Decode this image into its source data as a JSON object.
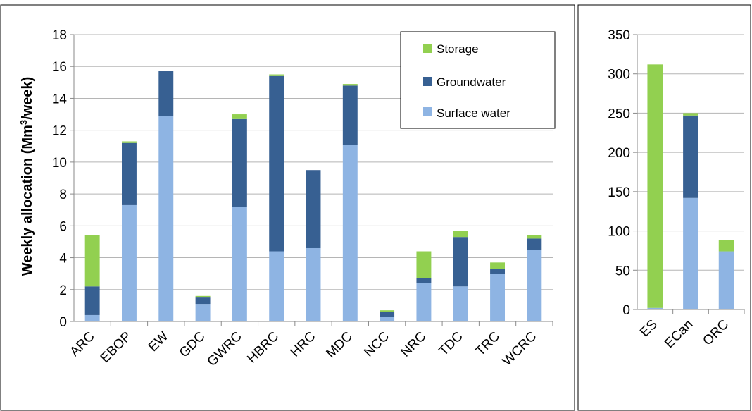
{
  "chart_data": [
    {
      "type": "bar",
      "stacked": true,
      "ylabel_main": "Weekly allocation (Mm",
      "ylabel_sup": "3",
      "ylabel_tail": "/week)",
      "ylim": [
        0,
        18
      ],
      "yticks": [
        "0",
        "2",
        "4",
        "6",
        "8",
        "10",
        "12",
        "14",
        "16",
        "18"
      ],
      "grid": true,
      "legend_position": "top-right",
      "categories": [
        "ARC",
        "EBOP",
        "EW",
        "GDC",
        "GWRC",
        "HBRC",
        "HRC",
        "MDC",
        "NCC",
        "NRC",
        "TDC",
        "TRC",
        "WCRC"
      ],
      "series": [
        {
          "name": "Surface water",
          "color": "#8eb4e3",
          "values": [
            0.4,
            7.3,
            12.9,
            1.1,
            7.2,
            4.4,
            4.6,
            11.1,
            0.3,
            2.4,
            2.2,
            3.0,
            4.5
          ]
        },
        {
          "name": "Groundwater",
          "color": "#376092",
          "values": [
            1.8,
            3.9,
            2.8,
            0.4,
            5.5,
            11.0,
            4.9,
            3.7,
            0.3,
            0.3,
            3.1,
            0.3,
            0.7
          ]
        },
        {
          "name": "Storage",
          "color": "#92d050",
          "values": [
            3.2,
            0.1,
            0.0,
            0.1,
            0.3,
            0.1,
            0.0,
            0.1,
            0.1,
            1.7,
            0.4,
            0.4,
            0.2
          ]
        }
      ],
      "legend_order": [
        "Storage",
        "Groundwater",
        "Surface water"
      ]
    },
    {
      "type": "bar",
      "stacked": true,
      "ylim": [
        0,
        350
      ],
      "yticks": [
        "0",
        "50",
        "100",
        "150",
        "200",
        "250",
        "300",
        "350"
      ],
      "grid": true,
      "categories": [
        "ES",
        "ECan",
        "ORC"
      ],
      "series": [
        {
          "name": "Surface water",
          "color": "#8eb4e3",
          "values": [
            2,
            142,
            74
          ]
        },
        {
          "name": "Groundwater",
          "color": "#376092",
          "values": [
            0,
            105,
            0
          ]
        },
        {
          "name": "Storage",
          "color": "#92d050",
          "values": [
            310,
            3,
            14
          ]
        }
      ]
    }
  ]
}
